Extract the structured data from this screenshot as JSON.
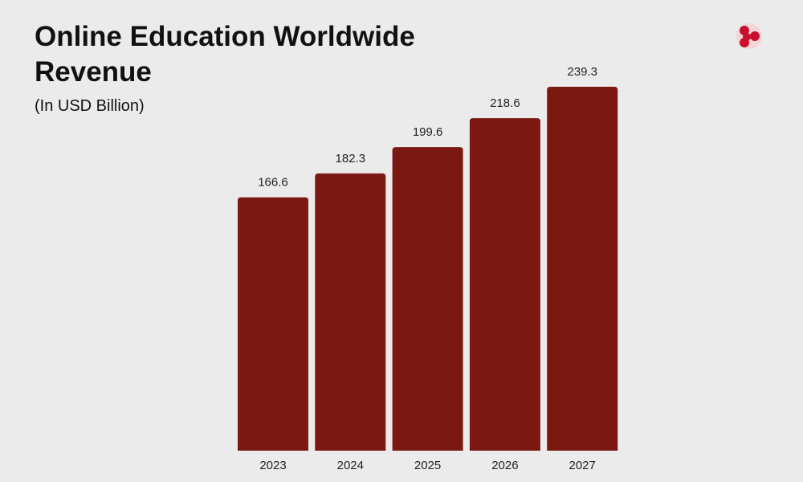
{
  "chart_data": {
    "type": "bar",
    "title": "Online Education Worldwide Revenue",
    "subtitle": "(In USD Billion)",
    "categories": [
      "2023",
      "2024",
      "2025",
      "2026",
      "2027"
    ],
    "values": [
      166.6,
      182.3,
      199.6,
      218.6,
      239.3
    ],
    "color": "#7b1812"
  }
}
